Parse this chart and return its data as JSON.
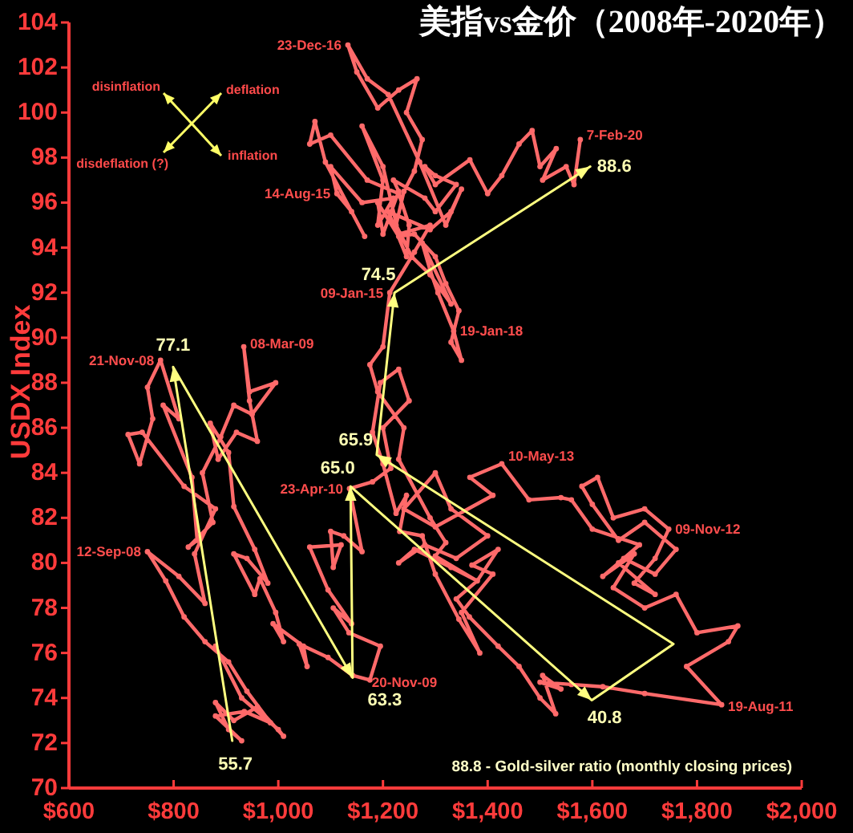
{
  "chart_data": {
    "type": "line",
    "title": "美指vs金价（2008年-2020年）",
    "ylabel": "USDX Index",
    "xlim": [
      600,
      2000
    ],
    "ylim": [
      70,
      104
    ],
    "xticks": [
      {
        "value": 600,
        "label": "$600"
      },
      {
        "value": 800,
        "label": "$800"
      },
      {
        "value": 1000,
        "label": "$1,000"
      },
      {
        "value": 1200,
        "label": "$1,200"
      },
      {
        "value": 1400,
        "label": "$1,400"
      },
      {
        "value": 1600,
        "label": "$1,600"
      },
      {
        "value": 1800,
        "label": "$1,800"
      },
      {
        "value": 2000,
        "label": "$2,000"
      }
    ],
    "yticks": [
      70,
      72,
      74,
      76,
      78,
      80,
      82,
      84,
      86,
      88,
      90,
      92,
      94,
      96,
      98,
      100,
      102,
      104
    ],
    "series": [
      {
        "color": "#ff6a6a",
        "marker": "circle",
        "x": [
          880,
          930,
          1000,
          1010,
          960,
          915,
          880,
          905,
          930,
          880,
          935,
          985,
          940,
          905,
          860,
          820,
          785,
          750,
          810,
          860,
          840,
          880,
          820,
          740,
          713,
          735,
          760,
          750,
          775,
          810,
          780,
          835,
          845,
          828,
          875,
          855,
          890,
          915,
          950,
          995,
          945,
          934,
          945,
          960,
          920,
          885,
          870,
          905,
          915,
          955,
          980,
          940,
          915,
          955,
          965,
          995,
          1010,
          990,
          1048,
          1055,
          1040,
          1095,
          1142,
          1175,
          1195,
          1135,
          1105,
          1140,
          1095,
          1060,
          1120,
          1105,
          1100,
          1125,
          1160,
          1136,
          1180,
          1215,
          1200,
          1250,
          1230,
          1195,
          1180,
          1200,
          1225,
          1245,
          1232,
          1275,
          1300,
          1345,
          1385,
          1350,
          1410,
          1370,
          1420,
          1380,
          1340,
          1365,
          1420,
          1460,
          1500,
          1530,
          1505,
          1540,
          1500,
          1560,
          1620,
          1700,
          1847,
          1780,
          1860,
          1878,
          1800,
          1760,
          1700,
          1640,
          1680,
          1620,
          1660,
          1720,
          1760,
          1700,
          1650,
          1600,
          1580,
          1610,
          1640,
          1700,
          1746,
          1720,
          1680,
          1720,
          1650,
          1690,
          1600,
          1560,
          1540,
          1479,
          1427,
          1366,
          1410,
          1300,
          1240,
          1300,
          1330,
          1400,
          1340,
          1280,
          1230,
          1260,
          1330,
          1380,
          1300,
          1320,
          1290,
          1230,
          1240,
          1190,
          1175,
          1200,
          1213,
          1260,
          1290,
          1230,
          1200,
          1160,
          1200,
          1190,
          1220,
          1160,
          1100,
          1112,
          1140,
          1165,
          1090,
          1070,
          1060,
          1100,
          1170,
          1230,
          1250,
          1245,
          1210,
          1290,
          1330,
          1350,
          1320,
          1270,
          1210,
          1170,
          1133,
          1150,
          1190,
          1230,
          1265,
          1245,
          1275,
          1260,
          1240,
          1225,
          1255,
          1290,
          1330,
          1275,
          1290,
          1305,
          1335,
          1350,
          1330,
          1345,
          1320,
          1300,
          1260,
          1230,
          1190,
          1200,
          1230,
          1220,
          1280,
          1300,
          1340,
          1300,
          1280,
          1300,
          1366,
          1400,
          1427,
          1460,
          1485,
          1500,
          1531,
          1505,
          1550,
          1565,
          1577
        ],
        "values": [
          76.3,
          74.0,
          72.6,
          72.3,
          73.6,
          73.0,
          73.8,
          72.6,
          72.1,
          73.2,
          73.4,
          72.9,
          74.3,
          75.6,
          76.5,
          77.6,
          79.2,
          80.5,
          79.4,
          78.2,
          80.4,
          82.4,
          83.4,
          85.8,
          85.7,
          84.4,
          86.4,
          87.8,
          89.0,
          86.4,
          87.0,
          83.8,
          81.0,
          80.7,
          81.8,
          84.0,
          85.6,
          87.0,
          86.6,
          88.0,
          87.6,
          89.6,
          87.2,
          85.4,
          85.8,
          84.6,
          86.2,
          84.9,
          82.5,
          80.6,
          79.1,
          80.2,
          80.4,
          78.6,
          79.3,
          77.8,
          76.5,
          77.3,
          76.3,
          75.4,
          76.4,
          75.8,
          75.0,
          74.8,
          76.3,
          76.9,
          78.0,
          77.3,
          78.8,
          80.7,
          80.8,
          79.8,
          81.4,
          81.2,
          80.5,
          83.3,
          83.6,
          84.2,
          86.0,
          87.2,
          88.6,
          88.0,
          85.8,
          84.4,
          82.2,
          83.0,
          81.4,
          81.2,
          79.5,
          77.5,
          76.0,
          77.8,
          79.5,
          79.9,
          80.6,
          79.2,
          78.4,
          77.6,
          76.3,
          75.4,
          74.0,
          73.3,
          75.0,
          74.4,
          74.7,
          74.6,
          74.5,
          74.2,
          73.7,
          75.4,
          76.5,
          77.2,
          76.9,
          78.6,
          78.0,
          78.9,
          80.4,
          79.4,
          80.2,
          79.5,
          80.6,
          81.8,
          81.0,
          82.6,
          83.4,
          83.8,
          82.0,
          82.4,
          81.5,
          80.2,
          79.1,
          78.6,
          80.0,
          80.8,
          81.5,
          82.8,
          82.9,
          82.8,
          84.4,
          83.8,
          83.0,
          81.6,
          82.4,
          84.0,
          82.4,
          81.2,
          80.2,
          80.8,
          80.0,
          80.6,
          79.8,
          79.2,
          80.3,
          80.9,
          82.0,
          84.6,
          86.0,
          87.6,
          88.8,
          89.6,
          92.0,
          93.8,
          95.0,
          94.6,
          97.6,
          99.4,
          97.0,
          95.0,
          96.2,
          96.0,
          97.6,
          96.4,
          95.6,
          94.5,
          97.8,
          99.6,
          98.6,
          99.0,
          97.0,
          96.4,
          95.0,
          93.6,
          95.6,
          94.8,
          95.6,
          96.6,
          95.0,
          97.8,
          100.8,
          101.5,
          103.0,
          101.8,
          100.2,
          101.0,
          101.5,
          100.0,
          98.8,
          97.4,
          96.5,
          95.0,
          93.6,
          92.8,
          91.5,
          94.2,
          93.0,
          92.0,
          90.3,
          89.0,
          89.8,
          91.2,
          92.4,
          93.6,
          94.6,
          94.5,
          96.0,
          94.6,
          96.5,
          97.0,
          96.2,
          95.6,
          96.8,
          97.2,
          97.6,
          96.8,
          97.9,
          96.4,
          97.2,
          98.6,
          99.2,
          97.6,
          98.4,
          97.0,
          97.6,
          96.8,
          98.8
        ]
      },
      {
        "color": "#ffff80",
        "marker": "none",
        "x": [
          912,
          799,
          1142,
          1138,
          1599,
          1755,
          1188,
          1222,
          1596
        ],
        "values": [
          72.1,
          88.7,
          74.9,
          83.4,
          73.9,
          76.4,
          84.8,
          92.0,
          97.6
        ]
      }
    ],
    "annotations": [
      "disinflation",
      "deflation",
      "disdeflation (?)",
      "inflation",
      {
        "text": "23-Dec-16",
        "x": 1133,
        "y": 103.0
      },
      {
        "text": "7-Feb-20",
        "x": 1577,
        "y": 98.8
      },
      {
        "text": "14-Aug-15",
        "x": 1112,
        "y": 96.4
      },
      {
        "text": "09-Jan-15",
        "x": 1213,
        "y": 92.0
      },
      {
        "text": "19-Jan-18",
        "x": 1335,
        "y": 90.3
      },
      {
        "text": "21-Nov-08",
        "x": 775,
        "y": 89.0
      },
      {
        "text": "08-Mar-09",
        "x": 934,
        "y": 89.6
      },
      {
        "text": "12-Sep-08",
        "x": 750,
        "y": 80.5
      },
      {
        "text": "23-Apr-10",
        "x": 1136,
        "y": 83.3
      },
      {
        "text": "10-May-13",
        "x": 1427,
        "y": 84.4
      },
      {
        "text": "09-Nov-12",
        "x": 1746,
        "y": 81.5
      },
      {
        "text": "20-Nov-09",
        "x": 1142,
        "y": 75.0
      },
      {
        "text": "19-Aug-11",
        "x": 1847,
        "y": 73.7
      },
      {
        "text": "55.7",
        "x": 912,
        "y": 72.1
      },
      {
        "text": "77.1",
        "x": 799,
        "y": 88.7
      },
      {
        "text": "63.3",
        "x": 1142,
        "y": 74.9
      },
      {
        "text": "65.0",
        "x": 1138,
        "y": 83.4
      },
      {
        "text": "40.8",
        "x": 1599,
        "y": 73.9
      },
      {
        "text": "65.9",
        "x": 1188,
        "y": 84.8
      },
      {
        "text": "74.5",
        "x": 1222,
        "y": 92.0
      },
      {
        "text": "88.6",
        "x": 1596,
        "y": 97.6
      },
      "88.8 - Gold-silver ratio (monthly closing prices)"
    ]
  }
}
